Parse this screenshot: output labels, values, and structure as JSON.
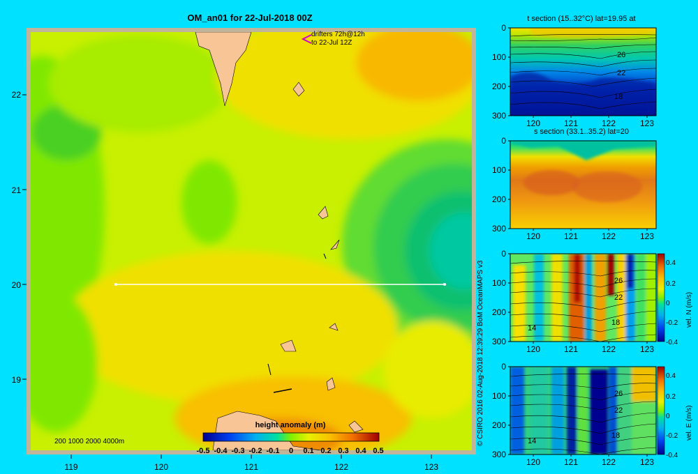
{
  "title": "OM_an01 for 22-Jul-2018 00Z",
  "drifters_line1": "drifters 72h@12h",
  "drifters_line2": "to 22-Jul 12Z",
  "depth_legend": "200  1000  2000  4000m",
  "credit": "© CSIRO 2016   02-Aug-2018 12:39:29 BoM OceanMAPS v3",
  "colors": {
    "background": "#00e0ff",
    "frame": "#c0b49a",
    "land": "#f7c596",
    "transect": "#ffffff"
  },
  "chart_data": [
    {
      "type": "heatmap",
      "title": "OM_an01 for 22-Jul-2018 00Z",
      "x_ticks": [
        "119",
        "120",
        "121",
        "122",
        "123"
      ],
      "y_ticks": [
        "22",
        "21",
        "20",
        "19"
      ],
      "xlim": [
        118.5,
        123.5
      ],
      "ylim": [
        18.2,
        22.7
      ],
      "transect": {
        "lon": [
          119.5,
          123.2
        ],
        "lat": 20
      },
      "colorbar": {
        "label": "height anomaly  (m)",
        "ticks": [
          "-0.5",
          "-0.4",
          "-0.3",
          "-0.2",
          "-0.1",
          "0",
          "0.1",
          "0.2",
          "0.3",
          "0.4",
          "0.5"
        ],
        "range": [
          -0.5,
          0.5
        ]
      }
    },
    {
      "type": "heatmap",
      "title": "t section (15..32°C) lat=19.95 at",
      "x_ticks": [
        "120",
        "121",
        "122",
        "123"
      ],
      "y_ticks": [
        "0",
        "100",
        "200",
        "300"
      ],
      "contour_labels": [
        "26",
        "22",
        "18"
      ]
    },
    {
      "type": "heatmap",
      "title": "s section (33.1..35.2) lat=20",
      "x_ticks": [
        "120",
        "121",
        "122",
        "123"
      ],
      "y_ticks": [
        "0",
        "100",
        "200",
        "300"
      ]
    },
    {
      "type": "heatmap",
      "x_ticks": [
        "120",
        "121",
        "122",
        "123"
      ],
      "y_ticks": [
        "0",
        "100",
        "200",
        "300"
      ],
      "contour_labels": [
        "26",
        "22",
        "18",
        "14"
      ],
      "colorbar": {
        "label": "vel. N  (m/s)",
        "ticks": [
          "0.4",
          "0.2",
          "0",
          "-0.2",
          "-0.4"
        ]
      }
    },
    {
      "type": "heatmap",
      "x_ticks": [
        "120",
        "121",
        "122",
        "123"
      ],
      "y_ticks": [
        "0",
        "100",
        "200",
        "300"
      ],
      "contour_labels": [
        "26",
        "22",
        "18",
        "14"
      ],
      "colorbar": {
        "label": "vel. E  (m/s)",
        "ticks": [
          "0.4",
          "0.2",
          "0",
          "-0.2",
          "-0.4"
        ]
      }
    }
  ]
}
